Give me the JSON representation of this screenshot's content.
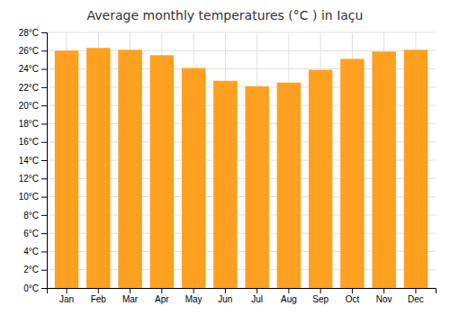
{
  "chart_data": {
    "type": "bar",
    "title": "Average monthly temperatures (°C ) in Iaçu",
    "categories": [
      "Jan",
      "Feb",
      "Mar",
      "Apr",
      "May",
      "Jun",
      "Jul",
      "Aug",
      "Sep",
      "Oct",
      "Nov",
      "Dec"
    ],
    "values": [
      26.0,
      26.3,
      26.1,
      25.5,
      24.1,
      22.7,
      22.1,
      22.5,
      23.9,
      25.1,
      25.9,
      26.1
    ],
    "color": "#FFA020",
    "ylim": [
      0,
      28
    ],
    "yticks": [
      {
        "value": 0,
        "label": "0°C"
      },
      {
        "value": 2,
        "label": "2°C"
      },
      {
        "value": 4,
        "label": "4°C"
      },
      {
        "value": 6,
        "label": "6°C"
      },
      {
        "value": 8,
        "label": "8°C"
      },
      {
        "value": 10,
        "label": "10°C"
      },
      {
        "value": 12,
        "label": "12°C"
      },
      {
        "value": 14,
        "label": "14°C"
      },
      {
        "value": 16,
        "label": "16°C"
      },
      {
        "value": 18,
        "label": "18°C"
      },
      {
        "value": 20,
        "label": "20°C"
      },
      {
        "value": 22,
        "label": "22°C"
      },
      {
        "value": 24,
        "label": "24°C"
      },
      {
        "value": 26,
        "label": "26°C"
      },
      {
        "value": 28,
        "label": "28°C"
      }
    ],
    "grid": true
  }
}
